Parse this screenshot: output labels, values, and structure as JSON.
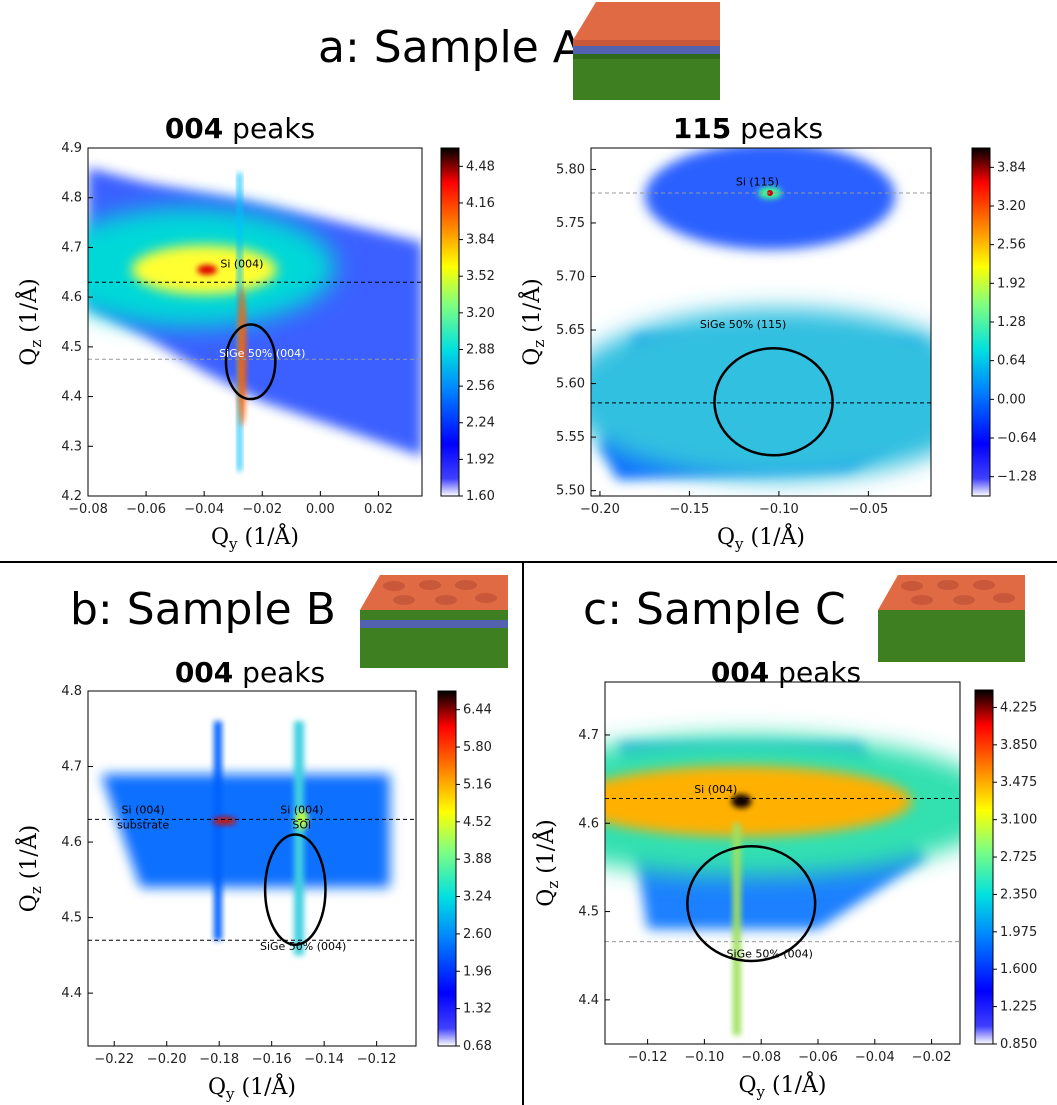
{
  "sections": {
    "a": {
      "label": "a:",
      "title": "Sample A"
    },
    "b": {
      "label": "b:",
      "title": "Sample B"
    },
    "c": {
      "label": "c:",
      "title": "Sample C"
    }
  },
  "colors": {
    "cap": "#d9613e",
    "si": "#3a8a1e",
    "sige": "#4a5aa8"
  },
  "chart_data": [
    {
      "id": "A004",
      "type": "heatmap",
      "title_bold": "004",
      "title_rest": " peaks",
      "xlabel_main": "Q",
      "xlabel_sub": "y",
      "xlabel_unit": " (1/Å)",
      "ylabel_main": "Q",
      "ylabel_sub": "z",
      "ylabel_unit": " (1/Å)",
      "xlim": [
        -0.08,
        0.035
      ],
      "ylim": [
        4.2,
        4.9
      ],
      "xticks": [
        -0.08,
        -0.06,
        -0.04,
        -0.02,
        0.0,
        0.02
      ],
      "xtick_labels": [
        "−0.08",
        "−0.06",
        "−0.04",
        "−0.02",
        "0.00",
        "0.02"
      ],
      "yticks": [
        4.2,
        4.3,
        4.4,
        4.5,
        4.6,
        4.7,
        4.8,
        4.9
      ],
      "ytick_labels": [
        "4.2",
        "4.3",
        "4.4",
        "4.5",
        "4.6",
        "4.7",
        "4.8",
        "4.9"
      ],
      "colorbar": {
        "min": 1.6,
        "max": 4.64,
        "ticks": [
          1.6,
          1.92,
          2.24,
          2.56,
          2.88,
          3.2,
          3.52,
          3.84,
          4.16,
          4.48
        ],
        "labels": [
          "1.60",
          "1.92",
          "2.24",
          "2.56",
          "2.88",
          "3.20",
          "3.52",
          "3.84",
          "4.16",
          "4.48"
        ]
      },
      "hlines": [
        {
          "y": 4.63,
          "style": "dark"
        },
        {
          "y": 4.475,
          "style": "light"
        }
      ],
      "annotations": [
        {
          "text": "Si (004)",
          "x": -0.027,
          "y": 4.66,
          "color": "#000"
        },
        {
          "text": "SiGe 50% (004)",
          "x": -0.02,
          "y": 4.48,
          "color": "#fff"
        }
      ],
      "ellipses": [
        {
          "cx": -0.024,
          "cy": 4.47,
          "rx": 0.0085,
          "ry": 0.075
        }
      ]
    },
    {
      "id": "A115",
      "type": "heatmap",
      "title_bold": "115",
      "title_rest": " peaks",
      "xlabel_main": "Q",
      "xlabel_sub": "y",
      "xlabel_unit": " (1/Å)",
      "ylabel_main": "Q",
      "ylabel_sub": "z",
      "ylabel_unit": " (1/Å)",
      "xlim": [
        -0.205,
        -0.015
      ],
      "ylim": [
        5.495,
        5.82
      ],
      "xticks": [
        -0.2,
        -0.15,
        -0.1,
        -0.05
      ],
      "xtick_labels": [
        "−0.20",
        "−0.15",
        "−0.10",
        "−0.05"
      ],
      "yticks": [
        5.5,
        5.55,
        5.6,
        5.65,
        5.7,
        5.75,
        5.8
      ],
      "ytick_labels": [
        "5.50",
        "5.55",
        "5.60",
        "5.65",
        "5.70",
        "5.75",
        "5.80"
      ],
      "colorbar": {
        "min": -1.6,
        "max": 4.16,
        "ticks": [
          -1.28,
          -0.64,
          0.0,
          0.64,
          1.28,
          1.92,
          2.56,
          3.2,
          3.84
        ],
        "labels": [
          "−1.28",
          "−0.64",
          "0.00",
          "0.64",
          "1.28",
          "1.92",
          "2.56",
          "3.20",
          "3.84"
        ]
      },
      "hlines": [
        {
          "y": 5.778,
          "style": "light"
        },
        {
          "y": 5.582,
          "style": "dark"
        }
      ],
      "annotations": [
        {
          "text": "Si (115)",
          "x": -0.112,
          "y": 5.785,
          "color": "#000"
        },
        {
          "text": "SiGe 50% (115)",
          "x": -0.12,
          "y": 5.652,
          "color": "#000"
        }
      ],
      "ellipses": [
        {
          "cx": -0.103,
          "cy": 5.583,
          "rx": 0.033,
          "ry": 0.05
        }
      ]
    },
    {
      "id": "B004",
      "type": "heatmap",
      "title_bold": "004",
      "title_rest": " peaks",
      "xlabel_main": "Q",
      "xlabel_sub": "y",
      "xlabel_unit": " (1/Å)",
      "ylabel_main": "Q",
      "ylabel_sub": "z",
      "ylabel_unit": " (1/Å)",
      "xlim": [
        -0.23,
        -0.105
      ],
      "ylim": [
        4.33,
        4.8
      ],
      "xticks": [
        -0.22,
        -0.2,
        -0.18,
        -0.16,
        -0.14,
        -0.12
      ],
      "xtick_labels": [
        "−0.22",
        "−0.20",
        "−0.18",
        "−0.16",
        "−0.14",
        "−0.12"
      ],
      "yticks": [
        4.4,
        4.5,
        4.6,
        4.7,
        4.8
      ],
      "ytick_labels": [
        "4.4",
        "4.5",
        "4.6",
        "4.7",
        "4.8"
      ],
      "colorbar": {
        "min": 0.68,
        "max": 6.76,
        "ticks": [
          0.68,
          1.32,
          1.96,
          2.6,
          3.24,
          3.88,
          4.52,
          5.16,
          5.8,
          6.44
        ],
        "labels": [
          "0.68",
          "1.32",
          "1.96",
          "2.60",
          "3.24",
          "3.88",
          "4.52",
          "5.16",
          "5.80",
          "6.44"
        ]
      },
      "hlines": [
        {
          "y": 4.63,
          "style": "dark"
        },
        {
          "y": 4.47,
          "style": "dark"
        }
      ],
      "annotations": [
        {
          "text": "Si (004)",
          "x": -0.209,
          "y": 4.638,
          "color": "#000"
        },
        {
          "text": "substrate",
          "x": -0.209,
          "y": 4.618,
          "color": "#000"
        },
        {
          "text": "Si (004)",
          "x": -0.1485,
          "y": 4.638,
          "color": "#000"
        },
        {
          "text": "SOI",
          "x": -0.1485,
          "y": 4.618,
          "color": "#000"
        },
        {
          "text": "SiGe 50% (004)",
          "x": -0.148,
          "y": 4.457,
          "color": "#000"
        }
      ],
      "ellipses": [
        {
          "cx": -0.151,
          "cy": 4.537,
          "rx": 0.0115,
          "ry": 0.073
        }
      ]
    },
    {
      "id": "C004",
      "type": "heatmap",
      "title_bold": "004",
      "title_rest": " peaks",
      "xlabel_main": "Q",
      "xlabel_sub": "y",
      "xlabel_unit": " (1/Å)",
      "ylabel_main": "Q",
      "ylabel_sub": "z",
      "ylabel_unit": " (1/Å)",
      "xlim": [
        -0.135,
        -0.01
      ],
      "ylim": [
        4.35,
        4.76
      ],
      "xticks": [
        -0.12,
        -0.1,
        -0.08,
        -0.06,
        -0.04,
        -0.02
      ],
      "xtick_labels": [
        "−0.12",
        "−0.10",
        "−0.08",
        "−0.06",
        "−0.04",
        "−0.02"
      ],
      "yticks": [
        4.4,
        4.5,
        4.6,
        4.7
      ],
      "ytick_labels": [
        "4.4",
        "4.5",
        "4.6",
        "4.7"
      ],
      "colorbar": {
        "min": 0.85,
        "max": 4.4,
        "ticks": [
          0.85,
          1.225,
          1.6,
          1.975,
          2.35,
          2.725,
          3.1,
          3.475,
          3.85,
          4.225
        ],
        "labels": [
          "0.850",
          "1.225",
          "1.600",
          "1.975",
          "2.350",
          "2.725",
          "3.100",
          "3.475",
          "3.850",
          "4.225"
        ]
      },
      "hlines": [
        {
          "y": 4.628,
          "style": "dark"
        },
        {
          "y": 4.466,
          "style": "light"
        }
      ],
      "annotations": [
        {
          "text": "Si (004)",
          "x": -0.096,
          "y": 4.634,
          "color": "#000"
        },
        {
          "text": "SiGe 50% (004)",
          "x": -0.077,
          "y": 4.448,
          "color": "#000"
        }
      ],
      "ellipses": [
        {
          "cx": -0.0835,
          "cy": 4.509,
          "rx": 0.0225,
          "ry": 0.065
        }
      ]
    }
  ]
}
